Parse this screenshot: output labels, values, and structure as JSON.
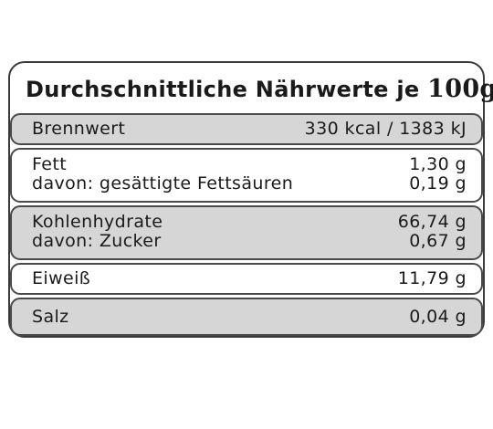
{
  "title": {
    "main": "Durchschnittliche Nährwerte je",
    "amount": "100g"
  },
  "rows": [
    {
      "label": "Brennwert",
      "value": "330 kcal / 1383 kJ"
    },
    {
      "label": "Fett",
      "value": "1,30 g",
      "sub_label": "davon: gesättigte Fettsäuren",
      "sub_value": "0,19 g"
    },
    {
      "label": "Kohlenhydrate",
      "value": "66,74 g",
      "sub_label": "davon: Zucker",
      "sub_value": "0,67 g"
    },
    {
      "label": "Eiweiß",
      "value": "11,79 g"
    },
    {
      "label": "Salz",
      "value": "0,04 g"
    }
  ],
  "colors": {
    "row_gray": "#d6d6d6",
    "row_white": "#ffffff",
    "border": "#3a3a3a",
    "text": "#1a1a1a"
  }
}
